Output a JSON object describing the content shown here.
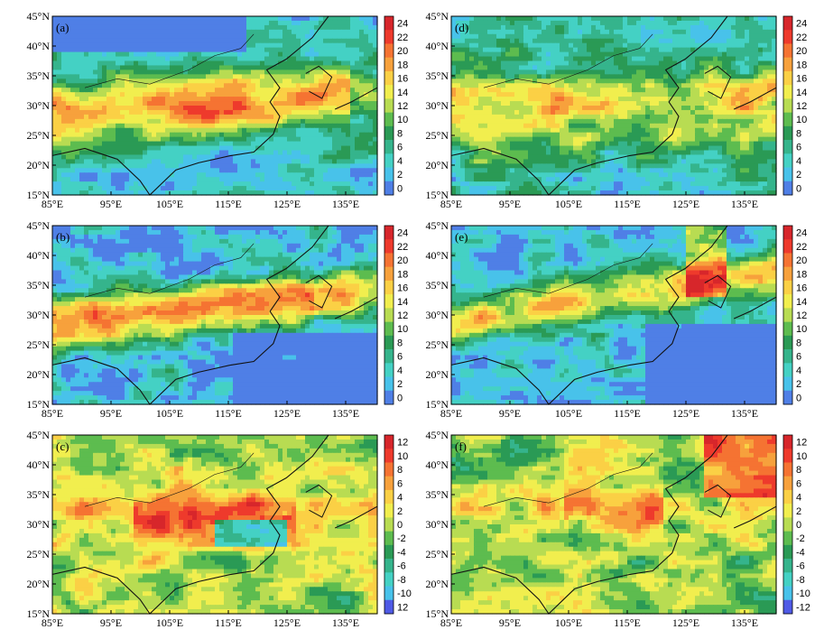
{
  "lat_ticks": [
    "45°N",
    "40°N",
    "35°N",
    "30°N",
    "25°N",
    "20°N",
    "15°N"
  ],
  "lon_ticks": [
    "85°E",
    "95°E",
    "105°E",
    "115°E",
    "125°E",
    "135°E"
  ],
  "colorbar_top": [
    "24",
    "22",
    "20",
    "18",
    "16",
    "14",
    "12",
    "10",
    "8",
    "6",
    "4",
    "2",
    "0"
  ],
  "colorbar_c": [
    "12",
    "10",
    "8",
    "6",
    "4",
    "2",
    "0",
    "-2",
    "-4",
    "-6",
    "-8",
    "-10",
    "12"
  ],
  "colorbar_f": [
    "12",
    "10",
    "8",
    "6",
    "4",
    "2",
    "0",
    "-2",
    "-4",
    "-6",
    "-8",
    "-10",
    "-12"
  ],
  "palette_top": [
    "#d7262b",
    "#ee3a2c",
    "#f57332",
    "#f7a13c",
    "#fbd045",
    "#f1ee4e",
    "#b8dc52",
    "#5dbc4f",
    "#2a9a55",
    "#35b48c",
    "#44d1c4",
    "#48c2ea",
    "#4f7fe6"
  ],
  "palette_diff": [
    "#d7262b",
    "#ee3a2c",
    "#f57332",
    "#f7a13c",
    "#fbd045",
    "#f1ee4e",
    "#b8dc52",
    "#5dbc4f",
    "#2a9a55",
    "#35b48c",
    "#44d1c4",
    "#48c2ea",
    "#4f5ae6"
  ],
  "panels": [
    {
      "id": "a",
      "label": "(a)",
      "scheme": "top",
      "colorbar": "colorbar_top"
    },
    {
      "id": "d",
      "label": "(d)",
      "scheme": "top",
      "colorbar": "colorbar_top"
    },
    {
      "id": "b",
      "label": "(b)",
      "scheme": "top",
      "colorbar": "colorbar_top"
    },
    {
      "id": "e",
      "label": "(e)",
      "scheme": "top",
      "colorbar": "colorbar_top"
    },
    {
      "id": "c",
      "label": "(c)",
      "scheme": "diff",
      "colorbar": "colorbar_c"
    },
    {
      "id": "f",
      "label": "(f)",
      "scheme": "diff",
      "colorbar": "colorbar_f"
    }
  ]
}
